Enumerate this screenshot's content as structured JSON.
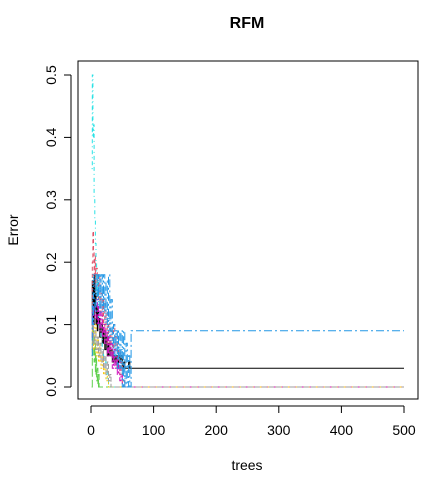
{
  "chart_data": {
    "type": "line",
    "title": "RFM",
    "xlabel": "trees",
    "ylabel": "Error",
    "xlim": [
      0,
      500
    ],
    "ylim": [
      0,
      0.5
    ],
    "xticks": [
      0,
      100,
      200,
      300,
      400,
      500
    ],
    "yticks": [
      0.0,
      0.1,
      0.2,
      0.3,
      0.4,
      0.5
    ],
    "xtick_labels": [
      "0",
      "100",
      "200",
      "300",
      "400",
      "500"
    ],
    "ytick_labels": [
      "0.0",
      "0.1",
      "0.2",
      "0.3",
      "0.4",
      "0.5"
    ],
    "grid": false,
    "legend": "none",
    "series": [
      {
        "color": "#000000",
        "dash": "",
        "points": [
          [
            1,
            0.1
          ],
          [
            2,
            0.17
          ],
          [
            3,
            0.16
          ],
          [
            4,
            0.1
          ],
          [
            5,
            0.18
          ],
          [
            6,
            0.13
          ],
          [
            7,
            0.15
          ],
          [
            8,
            0.1
          ],
          [
            9,
            0.13
          ],
          [
            10,
            0.09
          ],
          [
            11,
            0.12
          ],
          [
            12,
            0.1
          ],
          [
            13,
            0.11
          ],
          [
            14,
            0.08
          ],
          [
            16,
            0.1
          ],
          [
            18,
            0.07
          ],
          [
            20,
            0.09
          ],
          [
            22,
            0.06
          ],
          [
            24,
            0.08
          ],
          [
            26,
            0.05
          ],
          [
            28,
            0.07
          ],
          [
            30,
            0.05
          ],
          [
            32,
            0.06
          ],
          [
            34,
            0.04
          ],
          [
            36,
            0.05
          ],
          [
            38,
            0.04
          ],
          [
            40,
            0.05
          ],
          [
            42,
            0.03
          ],
          [
            44,
            0.05
          ],
          [
            46,
            0.04
          ],
          [
            48,
            0.05
          ],
          [
            50,
            0.03
          ],
          [
            52,
            0.04
          ],
          [
            54,
            0.03
          ],
          [
            58,
            0.03
          ],
          [
            60,
            0.04
          ],
          [
            62,
            0.03
          ],
          [
            500,
            0.03
          ]
        ]
      },
      {
        "color": "#DF536B",
        "dash": "4,3",
        "points": [
          [
            1,
            0.12
          ],
          [
            2,
            0.2
          ],
          [
            3,
            0.25
          ],
          [
            4,
            0.22
          ],
          [
            5,
            0.18
          ],
          [
            6,
            0.21
          ],
          [
            7,
            0.16
          ],
          [
            8,
            0.19
          ],
          [
            10,
            0.14
          ],
          [
            12,
            0.18
          ],
          [
            14,
            0.12
          ],
          [
            16,
            0.15
          ],
          [
            18,
            0.1
          ],
          [
            20,
            0.14
          ],
          [
            22,
            0.09
          ],
          [
            24,
            0.12
          ],
          [
            26,
            0.07
          ],
          [
            28,
            0.1
          ],
          [
            30,
            0.06
          ],
          [
            32,
            0.09
          ],
          [
            34,
            0.05
          ],
          [
            36,
            0.1
          ],
          [
            38,
            0.06
          ],
          [
            40,
            0.08
          ],
          [
            42,
            0.03
          ],
          [
            44,
            0.06
          ],
          [
            46,
            0.02
          ],
          [
            48,
            0.04
          ],
          [
            50,
            0.0
          ],
          [
            52,
            0.01
          ],
          [
            54,
            0.0
          ],
          [
            500,
            0.0
          ]
        ]
      },
      {
        "color": "#61D04F",
        "dash": "8,3",
        "points": [
          [
            1,
            0.0
          ],
          [
            2,
            0.05
          ],
          [
            3,
            0.1
          ],
          [
            4,
            0.08
          ],
          [
            5,
            0.04
          ],
          [
            6,
            0.07
          ],
          [
            7,
            0.02
          ],
          [
            8,
            0.05
          ],
          [
            9,
            0.01
          ],
          [
            10,
            0.03
          ],
          [
            11,
            0.0
          ],
          [
            12,
            0.02
          ],
          [
            13,
            0.0
          ],
          [
            500,
            0.0
          ]
        ]
      },
      {
        "color": "#2297E6",
        "dash": "1,2",
        "points": [
          [
            1,
            0.1
          ],
          [
            2,
            0.15
          ],
          [
            3,
            0.18
          ],
          [
            4,
            0.16
          ],
          [
            5,
            0.18
          ],
          [
            6,
            0.15
          ],
          [
            8,
            0.16
          ],
          [
            10,
            0.13
          ],
          [
            12,
            0.18
          ],
          [
            14,
            0.14
          ],
          [
            16,
            0.18
          ],
          [
            18,
            0.12
          ],
          [
            20,
            0.15
          ],
          [
            22,
            0.1
          ],
          [
            24,
            0.13
          ],
          [
            26,
            0.08
          ],
          [
            28,
            0.11
          ],
          [
            30,
            0.07
          ],
          [
            32,
            0.09
          ],
          [
            34,
            0.05
          ],
          [
            36,
            0.08
          ],
          [
            38,
            0.06
          ],
          [
            40,
            0.09
          ],
          [
            42,
            0.05
          ],
          [
            44,
            0.07
          ],
          [
            46,
            0.03
          ],
          [
            48,
            0.06
          ],
          [
            50,
            0.02
          ],
          [
            52,
            0.04
          ],
          [
            54,
            0.0
          ],
          [
            500,
            0.0
          ]
        ]
      },
      {
        "color": "#28E2E5",
        "dash": "1,3,4,3",
        "points": [
          [
            1,
            0.35
          ],
          [
            2,
            0.5
          ],
          [
            3,
            0.4
          ],
          [
            4,
            0.42
          ],
          [
            5,
            0.3
          ],
          [
            6,
            0.27
          ],
          [
            7,
            0.23
          ],
          [
            8,
            0.2
          ],
          [
            9,
            0.15
          ],
          [
            10,
            0.17
          ],
          [
            11,
            0.12
          ],
          [
            12,
            0.1
          ],
          [
            14,
            0.09
          ],
          [
            16,
            0.08
          ],
          [
            18,
            0.06
          ],
          [
            20,
            0.05
          ],
          [
            22,
            0.04
          ],
          [
            24,
            0.03
          ],
          [
            26,
            0.01
          ],
          [
            28,
            0.0
          ],
          [
            500,
            0.0
          ]
        ]
      },
      {
        "color": "#CD0BBC",
        "dash": "6,2,2,2",
        "points": [
          [
            1,
            0.08
          ],
          [
            2,
            0.12
          ],
          [
            3,
            0.1
          ],
          [
            4,
            0.13
          ],
          [
            6,
            0.11
          ],
          [
            8,
            0.14
          ],
          [
            10,
            0.1
          ],
          [
            12,
            0.13
          ],
          [
            14,
            0.09
          ],
          [
            16,
            0.12
          ],
          [
            18,
            0.08
          ],
          [
            20,
            0.1
          ],
          [
            22,
            0.07
          ],
          [
            24,
            0.09
          ],
          [
            26,
            0.05
          ],
          [
            28,
            0.08
          ],
          [
            30,
            0.05
          ],
          [
            32,
            0.07
          ],
          [
            34,
            0.03
          ],
          [
            36,
            0.06
          ],
          [
            38,
            0.03
          ],
          [
            40,
            0.05
          ],
          [
            42,
            0.02
          ],
          [
            44,
            0.04
          ],
          [
            46,
            0.01
          ],
          [
            48,
            0.02
          ],
          [
            50,
            0.0
          ],
          [
            500,
            0.0
          ]
        ]
      },
      {
        "color": "#F5C710",
        "dash": "2,2",
        "points": [
          [
            1,
            0.05
          ],
          [
            2,
            0.09
          ],
          [
            4,
            0.06
          ],
          [
            6,
            0.1
          ],
          [
            8,
            0.05
          ],
          [
            10,
            0.08
          ],
          [
            12,
            0.04
          ],
          [
            14,
            0.07
          ],
          [
            16,
            0.03
          ],
          [
            18,
            0.05
          ],
          [
            20,
            0.02
          ],
          [
            22,
            0.03
          ],
          [
            24,
            0.01
          ],
          [
            26,
            0.02
          ],
          [
            28,
            0.0
          ],
          [
            500,
            0.0
          ]
        ]
      },
      {
        "color": "#9E9E9E",
        "dash": "5,2",
        "points": [
          [
            1,
            0.06
          ],
          [
            2,
            0.1
          ],
          [
            4,
            0.07
          ],
          [
            6,
            0.09
          ],
          [
            8,
            0.06
          ],
          [
            10,
            0.08
          ],
          [
            12,
            0.05
          ],
          [
            14,
            0.07
          ],
          [
            16,
            0.04
          ],
          [
            18,
            0.06
          ],
          [
            20,
            0.03
          ],
          [
            22,
            0.05
          ],
          [
            24,
            0.02
          ],
          [
            26,
            0.04
          ],
          [
            28,
            0.01
          ],
          [
            30,
            0.02
          ],
          [
            32,
            0.0
          ],
          [
            500,
            0.0
          ]
        ]
      },
      {
        "color": "#2297E6",
        "dash": "8,3,2,3",
        "points": [
          [
            1,
            0.05
          ],
          [
            2,
            0.13
          ],
          [
            3,
            0.1
          ],
          [
            4,
            0.15
          ],
          [
            6,
            0.12
          ],
          [
            8,
            0.18
          ],
          [
            10,
            0.14
          ],
          [
            12,
            0.18
          ],
          [
            14,
            0.12
          ],
          [
            16,
            0.18
          ],
          [
            18,
            0.13
          ],
          [
            20,
            0.18
          ],
          [
            22,
            0.12
          ],
          [
            24,
            0.17
          ],
          [
            26,
            0.1
          ],
          [
            28,
            0.18
          ],
          [
            30,
            0.09
          ],
          [
            32,
            0.14
          ],
          [
            34,
            0.07
          ],
          [
            36,
            0.1
          ],
          [
            38,
            0.05
          ],
          [
            40,
            0.09
          ],
          [
            42,
            0.03
          ],
          [
            44,
            0.09
          ],
          [
            46,
            0.03
          ],
          [
            48,
            0.09
          ],
          [
            50,
            0.0
          ],
          [
            52,
            0.09
          ],
          [
            54,
            0.0
          ],
          [
            56,
            0.07
          ],
          [
            58,
            0.0
          ],
          [
            60,
            0.05
          ],
          [
            62,
            0.0
          ],
          [
            64,
            0.09
          ],
          [
            500,
            0.09
          ]
        ]
      }
    ]
  }
}
